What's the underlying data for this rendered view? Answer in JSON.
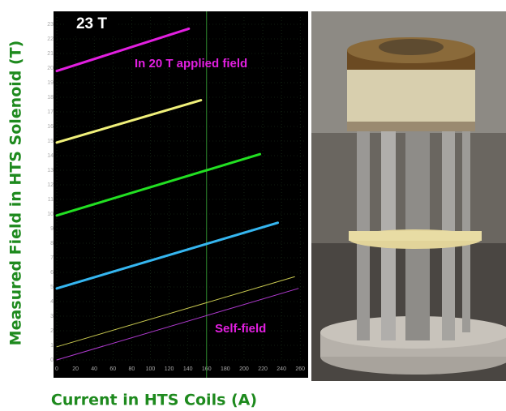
{
  "chart_data": {
    "type": "line",
    "y_label": "Measured Field in HTS Solenoid (T)",
    "x_label": "Current in HTS Coils (A)",
    "annotations": [
      "23 T",
      "In 20 T applied field",
      "Self-field"
    ],
    "xlim": [
      0,
      265
    ],
    "xticks": [
      0,
      20,
      40,
      60,
      80,
      100,
      120,
      140,
      160,
      180,
      200,
      220,
      240,
      260
    ],
    "ylim": [
      0,
      23.5
    ],
    "yticks": [
      0,
      1,
      2,
      3,
      4,
      5,
      6,
      7,
      8,
      9,
      10,
      11,
      12,
      13,
      14,
      15,
      16,
      17,
      18,
      19,
      20,
      21,
      22,
      23
    ],
    "grid": true,
    "vline": 160,
    "vline_color": "#2e8b2e",
    "background": "#000000",
    "series": [
      {
        "color": "#e21fe0",
        "line_width": 3,
        "x": [
          0,
          141
        ],
        "values": [
          19.8,
          22.7
        ]
      },
      {
        "color": "#f0f07a",
        "line_width": 3,
        "x": [
          0,
          154
        ],
        "values": [
          14.9,
          17.8
        ]
      },
      {
        "color": "#22e022",
        "line_width": 3,
        "x": [
          0,
          217
        ],
        "values": [
          9.9,
          14.1
        ]
      },
      {
        "color": "#35b6f0",
        "line_width": 3,
        "x": [
          0,
          236
        ],
        "values": [
          4.9,
          9.4
        ]
      },
      {
        "color": "#c8c850",
        "line_width": 1,
        "x": [
          0,
          254
        ],
        "values": [
          0.9,
          5.7
        ]
      },
      {
        "color": "#b03ad0",
        "line_width": 1,
        "x": [
          0,
          258
        ],
        "values": [
          0,
          4.9
        ]
      }
    ]
  }
}
